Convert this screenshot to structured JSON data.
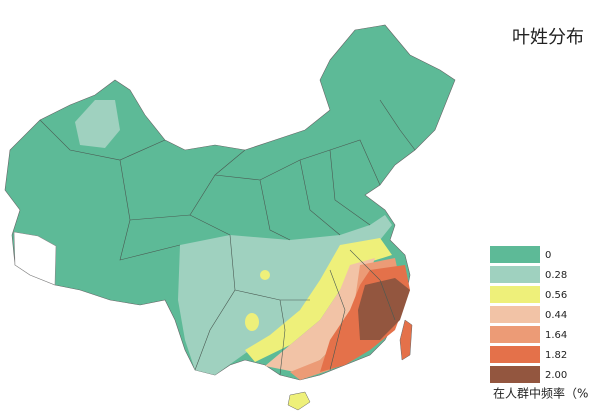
{
  "title": "叶姓分布",
  "legend": {
    "caption": "在人群中频率（%",
    "items": [
      {
        "label": "0",
        "color": "#5dba97"
      },
      {
        "label": "0.28",
        "color": "#9fd1bf"
      },
      {
        "label": "0.56",
        "color": "#eef07a"
      },
      {
        "label": "0.44",
        "color": "#f2c3a6"
      },
      {
        "label": "1.64",
        "color": "#ec9b76"
      },
      {
        "label": "1.82",
        "color": "#e4714a"
      },
      {
        "label": "2.00",
        "color": "#93563f"
      }
    ]
  }
}
